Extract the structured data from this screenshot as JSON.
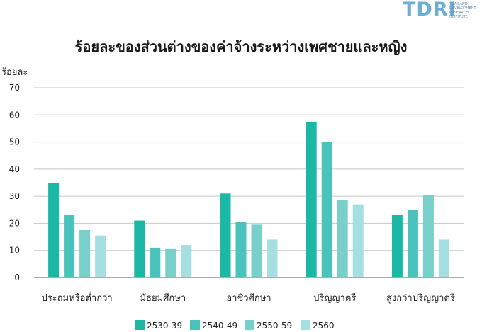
{
  "logo": {
    "text": "TDRI",
    "subtitle_lines": [
      "THAILAND",
      "DEVELOPMENT",
      "RESEARCH",
      "INSTITUTE"
    ]
  },
  "chart_data": {
    "type": "bar",
    "title": "ร้อยละของส่วนต่างของค่าจ้างระหว่างเพศชายและหญิง",
    "ylabel": "ร้อยละ",
    "xlabel": "",
    "ylim": [
      0,
      70
    ],
    "yticks": [
      0,
      10,
      20,
      30,
      40,
      50,
      60,
      70
    ],
    "grid": true,
    "legend_position": "bottom",
    "categories": [
      "ประถมหรือต่ำกว่า",
      "มัธยมศึกษา",
      "อาชีวศึกษา",
      "ปริญญาตรี",
      "สูงกว่าปริญญาตรี"
    ],
    "series": [
      {
        "name": "2530-39",
        "color": "#1bb8a6",
        "values": [
          35,
          21,
          31,
          57.5,
          23
        ]
      },
      {
        "name": "2540-49",
        "color": "#49c3bb",
        "values": [
          23,
          11,
          20.5,
          50,
          25
        ]
      },
      {
        "name": "2550-59",
        "color": "#79d0cb",
        "values": [
          17.5,
          10.5,
          19.5,
          28.5,
          30.5
        ]
      },
      {
        "name": "2560",
        "color": "#a6dfe2",
        "values": [
          15.5,
          12,
          14,
          27,
          14
        ]
      }
    ]
  }
}
